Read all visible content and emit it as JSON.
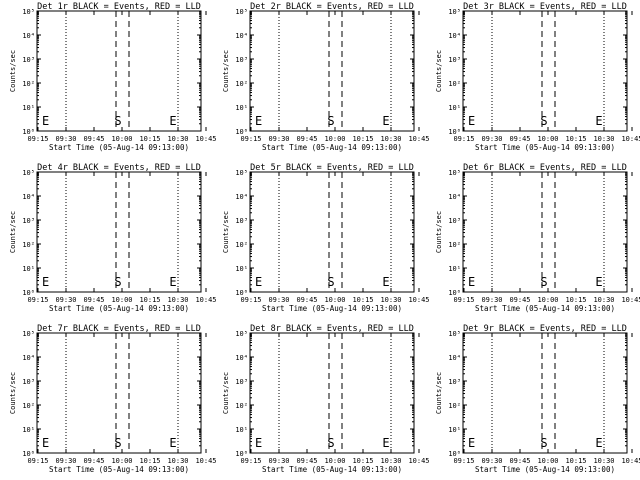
{
  "chart_data": [
    {
      "type": "line",
      "title": "Det 1r BLACK = Events, RED = LLD",
      "xlabel": "Start Time (05-Aug-14 09:13:00)",
      "ylabel": "Counts/sec",
      "x_ticks": [
        "09:15",
        "09:30",
        "09:45",
        "10:00",
        "10:15",
        "10:30",
        "10:45"
      ],
      "y_ticks": [
        "10⁰",
        "10¹",
        "10²",
        "10³",
        "10⁴",
        "10⁵"
      ],
      "y_scale": "log",
      "markers": {
        "start": "S",
        "end": "E"
      },
      "series": []
    },
    {
      "type": "line",
      "title": "Det 2r BLACK = Events, RED = LLD",
      "xlabel": "Start Time (05-Aug-14 09:13:00)",
      "ylabel": "Counts/sec",
      "x_ticks": [
        "09:15",
        "09:30",
        "09:45",
        "10:00",
        "10:15",
        "10:30",
        "10:45"
      ],
      "y_ticks": [
        "10⁰",
        "10¹",
        "10²",
        "10³",
        "10⁴",
        "10⁵"
      ],
      "y_scale": "log",
      "markers": {
        "start": "S",
        "end": "E"
      },
      "series": []
    },
    {
      "type": "line",
      "title": "Det 3r BLACK = Events, RED = LLD",
      "xlabel": "Start Time (05-Aug-14 09:13:00)",
      "ylabel": "Counts/sec",
      "x_ticks": [
        "09:15",
        "09:30",
        "09:45",
        "10:00",
        "10:15",
        "10:30",
        "10:45"
      ],
      "y_ticks": [
        "10⁰",
        "10¹",
        "10²",
        "10³",
        "10⁴",
        "10⁵"
      ],
      "y_scale": "log",
      "markers": {
        "start": "S",
        "end": "E"
      },
      "series": []
    },
    {
      "type": "line",
      "title": "Det 4r BLACK = Events, RED = LLD",
      "xlabel": "Start Time (05-Aug-14 09:13:00)",
      "ylabel": "Counts/sec",
      "x_ticks": [
        "09:15",
        "09:30",
        "09:45",
        "10:00",
        "10:15",
        "10:30",
        "10:45"
      ],
      "y_ticks": [
        "10⁰",
        "10¹",
        "10²",
        "10³",
        "10⁴",
        "10⁵"
      ],
      "y_scale": "log",
      "markers": {
        "start": "S",
        "end": "E"
      },
      "series": []
    },
    {
      "type": "line",
      "title": "Det 5r BLACK = Events, RED = LLD",
      "xlabel": "Start Time (05-Aug-14 09:13:00)",
      "ylabel": "Counts/sec",
      "x_ticks": [
        "09:15",
        "09:30",
        "09:45",
        "10:00",
        "10:15",
        "10:30",
        "10:45"
      ],
      "y_ticks": [
        "10⁰",
        "10¹",
        "10²",
        "10³",
        "10⁴",
        "10⁵"
      ],
      "y_scale": "log",
      "markers": {
        "start": "S",
        "end": "E"
      },
      "series": []
    },
    {
      "type": "line",
      "title": "Det 6r BLACK = Events, RED = LLD",
      "xlabel": "Start Time (05-Aug-14 09:13:00)",
      "ylabel": "Counts/sec",
      "x_ticks": [
        "09:15",
        "09:30",
        "09:45",
        "10:00",
        "10:15",
        "10:30",
        "10:45"
      ],
      "y_ticks": [
        "10⁰",
        "10¹",
        "10²",
        "10³",
        "10⁴",
        "10⁵"
      ],
      "y_scale": "log",
      "markers": {
        "start": "S",
        "end": "E"
      },
      "series": []
    },
    {
      "type": "line",
      "title": "Det 7r BLACK = Events, RED = LLD",
      "xlabel": "Start Time (05-Aug-14 09:13:00)",
      "ylabel": "Counts/sec",
      "x_ticks": [
        "09:15",
        "09:30",
        "09:45",
        "10:00",
        "10:15",
        "10:30",
        "10:45"
      ],
      "y_ticks": [
        "10⁰",
        "10¹",
        "10²",
        "10³",
        "10⁴",
        "10⁵"
      ],
      "y_scale": "log",
      "markers": {
        "start": "S",
        "end": "E"
      },
      "series": []
    },
    {
      "type": "line",
      "title": "Det 8r BLACK = Events, RED = LLD",
      "xlabel": "Start Time (05-Aug-14 09:13:00)",
      "ylabel": "Counts/sec",
      "x_ticks": [
        "09:15",
        "09:30",
        "09:45",
        "10:00",
        "10:15",
        "10:30",
        "10:45"
      ],
      "y_ticks": [
        "10⁰",
        "10¹",
        "10²",
        "10³",
        "10⁴",
        "10⁵"
      ],
      "y_scale": "log",
      "markers": {
        "start": "S",
        "end": "E"
      },
      "series": []
    },
    {
      "type": "line",
      "title": "Det 9r BLACK = Events, RED = LLD",
      "xlabel": "Start Time (05-Aug-14 09:13:00)",
      "ylabel": "Counts/sec",
      "x_ticks": [
        "09:15",
        "09:30",
        "09:45",
        "10:00",
        "10:15",
        "10:30",
        "10:45"
      ],
      "y_ticks": [
        "10⁰",
        "10¹",
        "10²",
        "10³",
        "10⁴",
        "10⁵"
      ],
      "y_scale": "log",
      "markers": {
        "start": "S",
        "end": "E"
      },
      "series": []
    }
  ]
}
